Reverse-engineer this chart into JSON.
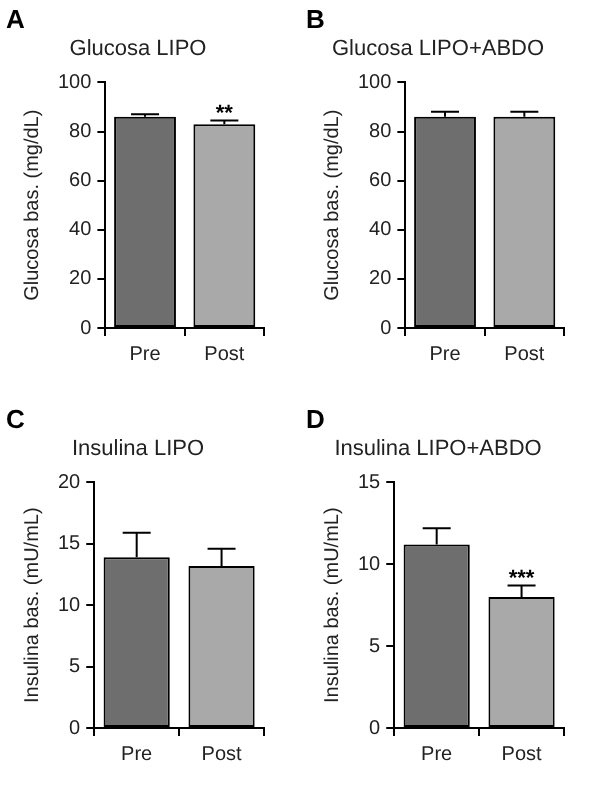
{
  "chart_data": [
    {
      "type": "bar",
      "title": "Glucosa LIPO",
      "ylabel": "Glucosa bas. (mg/dL)",
      "categories": [
        "Pre",
        "Post"
      ],
      "values": [
        86,
        83
      ],
      "colors": [
        "#6e6e6e",
        "#a9a9a9"
      ],
      "errors": [
        [
          86,
          87
        ],
        [
          83,
          84.5
        ]
      ],
      "ylim": [
        0,
        100
      ],
      "yticks": [
        0,
        20,
        40,
        60,
        80,
        100
      ],
      "grid": false,
      "legend": false,
      "annotations": [
        "A",
        {
          "text": "**",
          "x": "Post",
          "y": 84.5
        }
      ]
    },
    {
      "type": "bar",
      "title": "Glucosa LIPO+ABDO",
      "ylabel": "Glucosa bas. (mg/dL)",
      "categories": [
        "Pre",
        "Post"
      ],
      "values": [
        86,
        86
      ],
      "colors": [
        "#6e6e6e",
        "#a9a9a9"
      ],
      "errors": [
        [
          86,
          88
        ],
        [
          86,
          88
        ]
      ],
      "ylim": [
        0,
        100
      ],
      "yticks": [
        0,
        20,
        40,
        60,
        80,
        100
      ],
      "grid": false,
      "legend": false,
      "annotations": [
        "B"
      ]
    },
    {
      "type": "bar",
      "title": "Insulina LIPO",
      "ylabel": "Insulina bas. (mU/mL)",
      "categories": [
        "Pre",
        "Post"
      ],
      "values": [
        13.9,
        13.2
      ],
      "colors": [
        "#6e6e6e",
        "#a9a9a9"
      ],
      "errors": [
        [
          13.9,
          15.9
        ],
        [
          13.2,
          14.6
        ]
      ],
      "ylim": [
        0,
        20
      ],
      "yticks": [
        0,
        5,
        10,
        15,
        20
      ],
      "grid": false,
      "legend": false,
      "annotations": [
        "C"
      ]
    },
    {
      "type": "bar",
      "title": "Insulina LIPO+ABDO",
      "ylabel": "Insulina bas. (mU/mL)",
      "categories": [
        "Pre",
        "Post"
      ],
      "values": [
        11.2,
        8.0
      ],
      "colors": [
        "#6e6e6e",
        "#a9a9a9"
      ],
      "errors": [
        [
          11.2,
          12.2
        ],
        [
          8.0,
          8.7
        ]
      ],
      "ylim": [
        0,
        15
      ],
      "yticks": [
        0,
        5,
        10,
        15
      ],
      "grid": false,
      "legend": false,
      "annotations": [
        "D",
        {
          "text": "***",
          "x": "Post",
          "y": 8.7
        }
      ]
    }
  ]
}
